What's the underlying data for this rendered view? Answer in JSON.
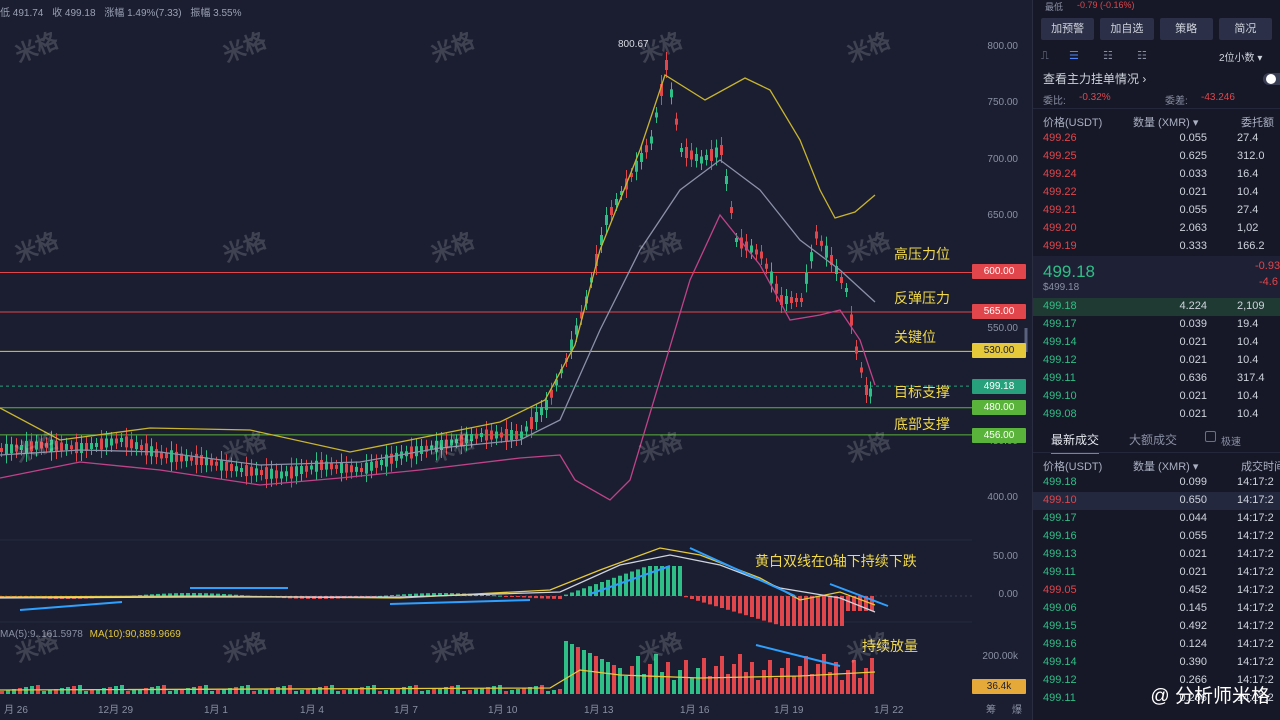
{
  "topbar": {
    "low": "低 491.74",
    "close": "收 499.18",
    "change": "涨幅 1.49%(7.33)",
    "amplitude": "振幅 3.55%"
  },
  "chart": {
    "y_ticks": [
      "800.00",
      "750.00",
      "700.00",
      "650.00",
      "550.00",
      "450.00",
      "400.00"
    ],
    "x_ticks": [
      "月 26",
      "12月 29",
      "1月 1",
      "1月 4",
      "1月 7",
      "1月 10",
      "1月 13",
      "1月 16",
      "1月 19",
      "1月 22"
    ],
    "peak_label": "800.67",
    "levels": [
      {
        "label": "600.00",
        "note": "高压力位",
        "color": "#e0464b"
      },
      {
        "label": "565.00",
        "note": "反弹压力",
        "color": "#e0464b"
      },
      {
        "label": "530.00",
        "note": "关键位",
        "color": "#e5c93a"
      },
      {
        "label": "499.18",
        "note": "目标支撑",
        "color": "#26a17b"
      },
      {
        "label": "480.00",
        "note": "",
        "color": "#5ab33a"
      },
      {
        "label": "456.00",
        "note": "底部支撑",
        "color": "#5ab33a"
      }
    ],
    "macd_ticks": [
      "50.00",
      "0.00"
    ],
    "macd_note": "黄白双线在0轴下持续下跌",
    "vol_ticks": [
      "200.00k"
    ],
    "vol_tag": "36.4k",
    "vol_note": "持续放量",
    "ma_vol": {
      "ma5": "MA(5):9..161.5978",
      "ma10": "MA(10):90,889.9669"
    },
    "x_right": [
      "筹",
      "爆"
    ],
    "watermark": "米格",
    "credit": "@ 分析师米格"
  },
  "chart_data": {
    "type": "candlestick",
    "ylim": [
      380,
      820
    ],
    "reference_levels": [
      600,
      565,
      530,
      499.18,
      480,
      456
    ],
    "last_close": 499.18,
    "peak": 800.67
  },
  "panel": {
    "top_label": "最低",
    "top_value": "-0.79 (-0.16%)",
    "buttons": [
      "加预警",
      "加自选",
      "策略",
      "简况"
    ],
    "precision": "2位小数 ▾",
    "main_force": "查看主力挂单情况 ›",
    "ratio_label": "委比:",
    "ratio_value": "-0.32%",
    "diff_label": "委差:",
    "diff_value": "-43.246",
    "book_headers": [
      "价格(USDT)",
      "数量 (XMR) ▾",
      "委托额"
    ],
    "asks": [
      [
        "499.26",
        "0.055",
        "27.4"
      ],
      [
        "499.25",
        "0.625",
        "312.0"
      ],
      [
        "499.24",
        "0.033",
        "16.4"
      ],
      [
        "499.22",
        "0.021",
        "10.4"
      ],
      [
        "499.21",
        "0.055",
        "27.4"
      ],
      [
        "499.20",
        "2.063",
        "1,02"
      ],
      [
        "499.19",
        "0.333",
        "166.2"
      ]
    ],
    "last_price": "499.18",
    "last_price_sub": "$499.18",
    "change1": "-0.93",
    "change2": "-4.6",
    "bids": [
      [
        "499.18",
        "4.224",
        "2,109"
      ],
      [
        "499.17",
        "0.039",
        "19.4"
      ],
      [
        "499.14",
        "0.021",
        "10.4"
      ],
      [
        "499.12",
        "0.021",
        "10.4"
      ],
      [
        "499.11",
        "0.636",
        "317.4"
      ],
      [
        "499.10",
        "0.021",
        "10.4"
      ],
      [
        "499.08",
        "0.021",
        "10.4"
      ]
    ],
    "tabs": [
      "最新成交",
      "大额成交",
      "极速"
    ],
    "trade_headers": [
      "价格(USDT)",
      "数量 (XMR) ▾",
      "成交时间"
    ],
    "trades": [
      [
        "499.18",
        "0.099",
        "14:17:2",
        "g"
      ],
      [
        "499.10",
        "0.650",
        "14:17:2",
        "r"
      ],
      [
        "499.17",
        "0.044",
        "14:17:2",
        "g"
      ],
      [
        "499.16",
        "0.055",
        "14:17:2",
        "g"
      ],
      [
        "499.13",
        "0.021",
        "14:17:2",
        "g"
      ],
      [
        "499.11",
        "0.021",
        "14:17:2",
        "g"
      ],
      [
        "499.05",
        "0.452",
        "14:17:2",
        "r"
      ],
      [
        "499.06",
        "0.145",
        "14:17:2",
        "g"
      ],
      [
        "499.15",
        "0.492",
        "14:17:2",
        "g"
      ],
      [
        "499.16",
        "0.124",
        "14:17:2",
        "g"
      ],
      [
        "499.14",
        "0.390",
        "14:17:2",
        "g"
      ],
      [
        "499.12",
        "0.266",
        "14:17:2",
        "g"
      ],
      [
        "499.11",
        "0.266",
        "14:17:2",
        "g"
      ]
    ]
  }
}
